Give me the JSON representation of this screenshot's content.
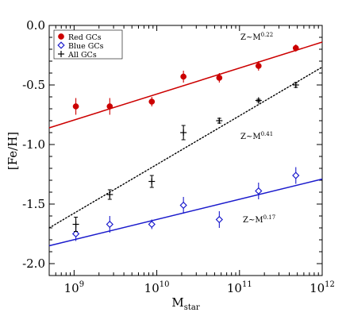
{
  "chart_data": {
    "type": "scatter",
    "xlabel": "M",
    "xlabel_sub": "star",
    "ylabel": "[Fe/H]",
    "x_scale": "log10",
    "xlim": [
      500000000,
      1000000000000
    ],
    "ylim": [
      -2.1,
      0.0
    ],
    "x_ticks": [
      {
        "value": 1000000000,
        "base": "10",
        "exp": "9"
      },
      {
        "value": 10000000000,
        "base": "10",
        "exp": "10"
      },
      {
        "value": 100000000000,
        "base": "10",
        "exp": "11"
      },
      {
        "value": 1000000000000,
        "base": "10",
        "exp": "12"
      }
    ],
    "y_ticks": [
      {
        "value": 0.0,
        "label": "0.0"
      },
      {
        "value": -0.5,
        "label": "-0.5"
      },
      {
        "value": -1.0,
        "label": "-1.0"
      },
      {
        "value": -1.5,
        "label": "-1.5"
      },
      {
        "value": -2.0,
        "label": "-2.0"
      }
    ],
    "legend_position": "top-left",
    "series": [
      {
        "name": "Red GCs",
        "marker": "filled-circle",
        "color": "#cc0000",
        "points": [
          {
            "x": 1050000000,
            "y": -0.68,
            "err": 0.07
          },
          {
            "x": 2700000000,
            "y": -0.68,
            "err": 0.07
          },
          {
            "x": 8700000000,
            "y": -0.64,
            "err": 0.04
          },
          {
            "x": 21000000000,
            "y": -0.43,
            "err": 0.05
          },
          {
            "x": 57000000000,
            "y": -0.44,
            "err": 0.04
          },
          {
            "x": 170000000000,
            "y": -0.34,
            "err": 0.04
          },
          {
            "x": 480000000000,
            "y": -0.19,
            "err": 0.03
          }
        ],
        "fit": {
          "label": "Z~M",
          "exponent": "0.22",
          "line_start": [
            500000000,
            -0.86
          ],
          "line_end": [
            1000000000000,
            -0.14
          ],
          "style": "solid"
        }
      },
      {
        "name": "Blue GCs",
        "marker": "open-diamond",
        "color": "#1a1acc",
        "points": [
          {
            "x": 1050000000,
            "y": -1.75,
            "err": 0.06
          },
          {
            "x": 2700000000,
            "y": -1.67,
            "err": 0.07
          },
          {
            "x": 8700000000,
            "y": -1.67,
            "err": 0.04
          },
          {
            "x": 21000000000,
            "y": -1.51,
            "err": 0.07
          },
          {
            "x": 57000000000,
            "y": -1.63,
            "err": 0.07
          },
          {
            "x": 170000000000,
            "y": -1.39,
            "err": 0.07
          },
          {
            "x": 480000000000,
            "y": -1.26,
            "err": 0.07
          }
        ],
        "fit": {
          "label": "Z~M",
          "exponent": "0.17",
          "line_start": [
            500000000,
            -1.85
          ],
          "line_end": [
            1000000000000,
            -1.29
          ],
          "style": "solid"
        }
      },
      {
        "name": "All GCs",
        "marker": "plus",
        "color": "#000000",
        "points": [
          {
            "x": 1050000000,
            "y": -1.67,
            "err": 0.06
          },
          {
            "x": 2700000000,
            "y": -1.42,
            "err": 0.04
          },
          {
            "x": 8700000000,
            "y": -1.31,
            "err": 0.05
          },
          {
            "x": 21000000000,
            "y": -0.9,
            "err": 0.06
          },
          {
            "x": 57000000000,
            "y": -0.8,
            "err": 0.02
          },
          {
            "x": 170000000000,
            "y": -0.63,
            "err": 0.01
          },
          {
            "x": 480000000000,
            "y": -0.5,
            "err": 0.02
          }
        ],
        "fit": {
          "label": "Z~M",
          "exponent": "0.41",
          "line_start": [
            500000000,
            -1.7
          ],
          "line_end": [
            1000000000000,
            -0.35
          ],
          "style": "dotted"
        }
      }
    ]
  }
}
